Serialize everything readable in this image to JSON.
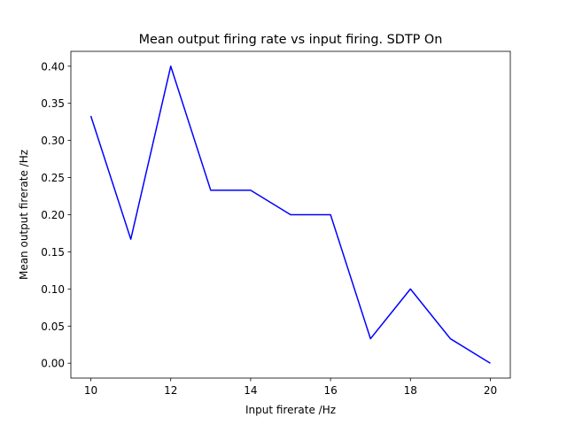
{
  "chart_data": {
    "type": "line",
    "title": "Mean output firing rate vs input firing. SDTP On",
    "xlabel": "Input firerate /Hz",
    "ylabel": "Mean output firerate /Hz",
    "xlim": [
      9.5,
      20.5
    ],
    "ylim": [
      -0.02,
      0.42
    ],
    "xticks": [
      10,
      12,
      14,
      16,
      18,
      20
    ],
    "yticks": [
      0.0,
      0.05,
      0.1,
      0.15,
      0.2,
      0.25,
      0.3,
      0.35,
      0.4
    ],
    "xtick_labels": [
      "10",
      "12",
      "14",
      "16",
      "18",
      "20"
    ],
    "ytick_labels": [
      "0.00",
      "0.05",
      "0.10",
      "0.15",
      "0.20",
      "0.25",
      "0.30",
      "0.35",
      "0.40"
    ],
    "grid": false,
    "series": [
      {
        "color": "#0000ff",
        "x": [
          10,
          11,
          12,
          13,
          14,
          15,
          16,
          17,
          18,
          19,
          20
        ],
        "y": [
          0.333,
          0.167,
          0.4,
          0.233,
          0.233,
          0.2,
          0.2,
          0.033,
          0.1,
          0.033,
          0.0
        ]
      }
    ]
  }
}
